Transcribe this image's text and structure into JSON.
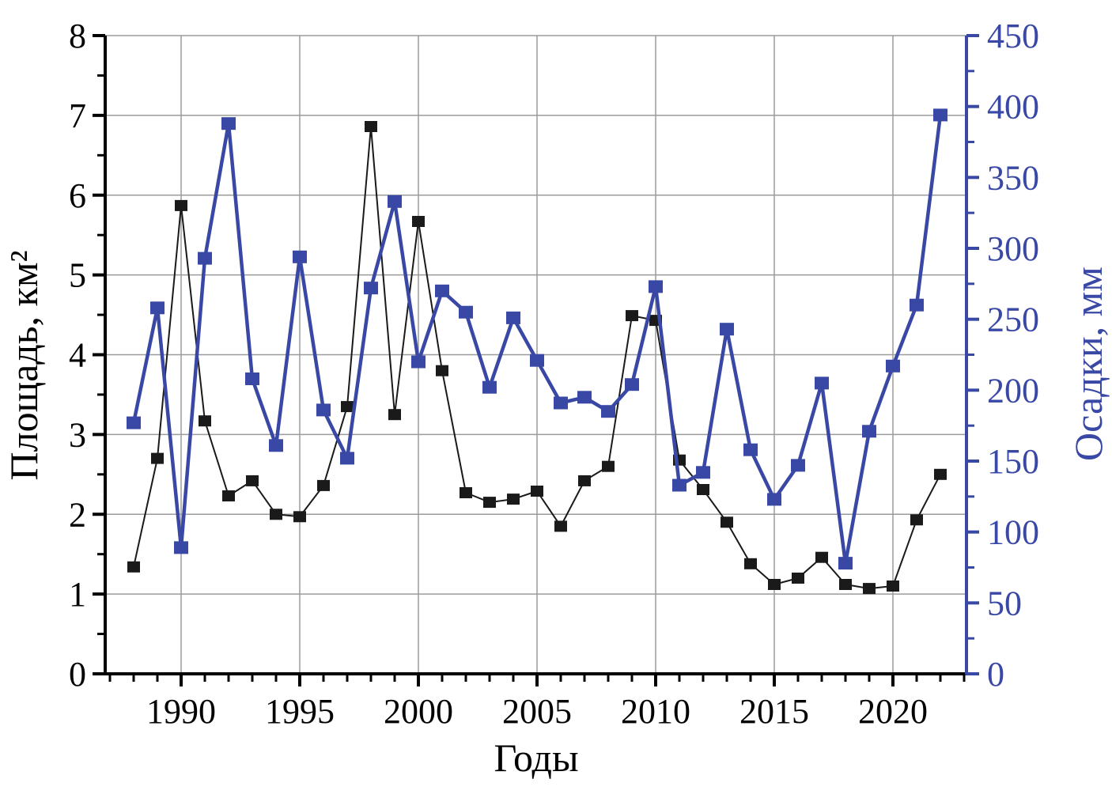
{
  "page": {
    "background": "#ffffff"
  },
  "axis_titles": {
    "left": "Площадь, км²",
    "bottom": "Годы",
    "right": "Осадки, мм"
  },
  "chart_data": {
    "type": "line",
    "title": "",
    "xlabel": "Годы",
    "ylabel_left": "Площадь, км²",
    "ylabel_right": "Осадки, мм",
    "x": [
      1988,
      1989,
      1990,
      1991,
      1992,
      1993,
      1994,
      1995,
      1996,
      1997,
      1998,
      1999,
      2000,
      2001,
      2002,
      2003,
      2004,
      2005,
      2006,
      2007,
      2008,
      2009,
      2010,
      2011,
      2012,
      2013,
      2014,
      2015,
      2016,
      2017,
      2018,
      2019,
      2020,
      2021,
      2022
    ],
    "series": [
      {
        "name": "Площадь, км²",
        "axis": "left",
        "color": "#1a1a1a",
        "line_width": 2,
        "marker": "square",
        "marker_w": 16,
        "marker_h": 14,
        "values": [
          1.34,
          2.7,
          5.87,
          3.17,
          2.23,
          2.42,
          2.0,
          1.97,
          2.36,
          3.35,
          6.86,
          3.25,
          5.67,
          3.8,
          2.27,
          2.15,
          2.19,
          2.29,
          1.85,
          2.42,
          2.6,
          4.49,
          4.43,
          2.68,
          2.31,
          1.9,
          1.38,
          1.12,
          1.2,
          1.46,
          1.12,
          1.07,
          1.1,
          1.93,
          2.5
        ]
      },
      {
        "name": "Осадки, мм",
        "axis": "right",
        "color": "#3a48a5",
        "line_width": 4.5,
        "marker": "square",
        "marker_w": 18,
        "marker_h": 16,
        "values": [
          177,
          258,
          89,
          293,
          388,
          208,
          161,
          294,
          186,
          152,
          272,
          333,
          220,
          270,
          255,
          202,
          251,
          221,
          191,
          195,
          185,
          204,
          273,
          133,
          142,
          243,
          158,
          123,
          147,
          205,
          78,
          171,
          217,
          260,
          394
        ]
      }
    ],
    "x_range": [
      1986.8,
      2023.1
    ],
    "ylim_left": [
      0,
      8
    ],
    "ylim_right": [
      0,
      450
    ],
    "x_ticks_major": [
      1990,
      1995,
      2000,
      2005,
      2010,
      2015,
      2020
    ],
    "x_tick_minor_step": 1,
    "left_ticks_major": [
      0,
      1,
      2,
      3,
      4,
      5,
      6,
      7,
      8
    ],
    "left_tick_minor_step": 0.5,
    "right_ticks_major": [
      0,
      50,
      100,
      150,
      200,
      250,
      300,
      350,
      400,
      450
    ],
    "right_tick_minor_step": 25,
    "grid": {
      "show": true,
      "color": "#9b9b9b",
      "width": 1.5
    },
    "axis_colors": {
      "left": "#000000",
      "bottom": "#000000",
      "right": "#3a48a5"
    },
    "legend_position": "none"
  }
}
